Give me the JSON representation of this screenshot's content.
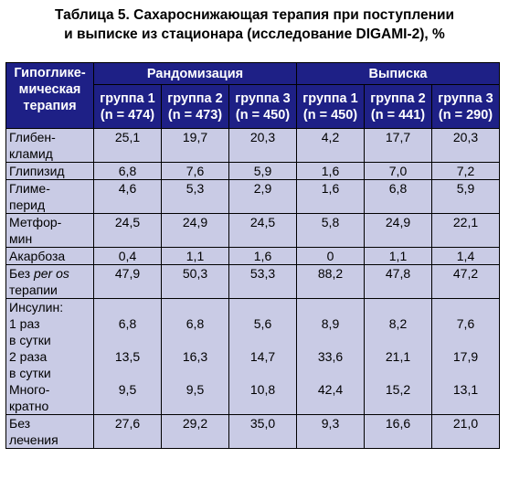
{
  "title": {
    "line1": "Таблица 5. Сахароснижающая терапия при поступлении",
    "line2": "и выписке из стационара (исследование DIGAMI-2), %"
  },
  "header": {
    "corner": [
      "Гипоглике-",
      "мическая",
      "терапия"
    ],
    "randomization": "Рандомизация",
    "discharge": "Выписка",
    "groups": [
      [
        "группа 1",
        "(n = 474)"
      ],
      [
        "группа 2",
        "(n = 473)"
      ],
      [
        "группа 3",
        "(n = 450)"
      ],
      [
        "группа 1",
        "(n = 450)"
      ],
      [
        "группа 2",
        "(n = 441)"
      ],
      [
        "группа 3",
        "(n = 290)"
      ]
    ]
  },
  "rows": [
    {
      "label": [
        "Глибен-",
        "кламид"
      ],
      "values": [
        [
          "25,1"
        ],
        [
          "19,7"
        ],
        [
          "20,3"
        ],
        [
          "4,2"
        ],
        [
          "17,7"
        ],
        [
          "20,3"
        ]
      ]
    },
    {
      "label": [
        "Глипизид"
      ],
      "values": [
        [
          "6,8"
        ],
        [
          "7,6"
        ],
        [
          "5,9"
        ],
        [
          "1,6"
        ],
        [
          "7,0"
        ],
        [
          "7,2"
        ]
      ]
    },
    {
      "label": [
        "Глиме-",
        "перид"
      ],
      "values": [
        [
          "4,6"
        ],
        [
          "5,3"
        ],
        [
          "2,9"
        ],
        [
          "1,6"
        ],
        [
          "6,8"
        ],
        [
          "5,9"
        ]
      ]
    },
    {
      "label": [
        "Метфор-",
        "мин"
      ],
      "values": [
        [
          "24,5"
        ],
        [
          "24,9"
        ],
        [
          "24,5"
        ],
        [
          "5,8"
        ],
        [
          "24,9"
        ],
        [
          "22,1"
        ]
      ]
    },
    {
      "label": [
        "Акарбоза"
      ],
      "values": [
        [
          "0,4"
        ],
        [
          "1,1"
        ],
        [
          "1,6"
        ],
        [
          "0"
        ],
        [
          "1,1"
        ],
        [
          "1,4"
        ]
      ]
    },
    {
      "label_prefix": "Без ",
      "label_italic": "per os",
      "label_line2": "терапии",
      "values": [
        [
          "47,9"
        ],
        [
          "50,3"
        ],
        [
          "53,3"
        ],
        [
          "88,2"
        ],
        [
          "47,8"
        ],
        [
          "47,2"
        ]
      ]
    },
    {
      "label": [
        "Инсулин:",
        "1 раз",
        "в сутки",
        "2 раза",
        "в сутки",
        "Много-",
        "кратно"
      ],
      "values": [
        [
          "",
          "6,8",
          "",
          "13,5",
          "",
          "9,5"
        ],
        [
          "",
          "6,8",
          "",
          "16,3",
          "",
          "9,5"
        ],
        [
          "",
          "5,6",
          "",
          "14,7",
          "",
          "10,8"
        ],
        [
          "",
          "8,9",
          "",
          "33,6",
          "",
          "42,4"
        ],
        [
          "",
          "8,2",
          "",
          "21,1",
          "",
          "15,2"
        ],
        [
          "",
          "7,6",
          "",
          "17,9",
          "",
          "13,1"
        ]
      ]
    },
    {
      "label": [
        "Без",
        "лечения"
      ],
      "values": [
        [
          "27,6"
        ],
        [
          "29,2"
        ],
        [
          "35,0"
        ],
        [
          "9,3"
        ],
        [
          "16,6"
        ],
        [
          "21,0"
        ]
      ]
    }
  ]
}
